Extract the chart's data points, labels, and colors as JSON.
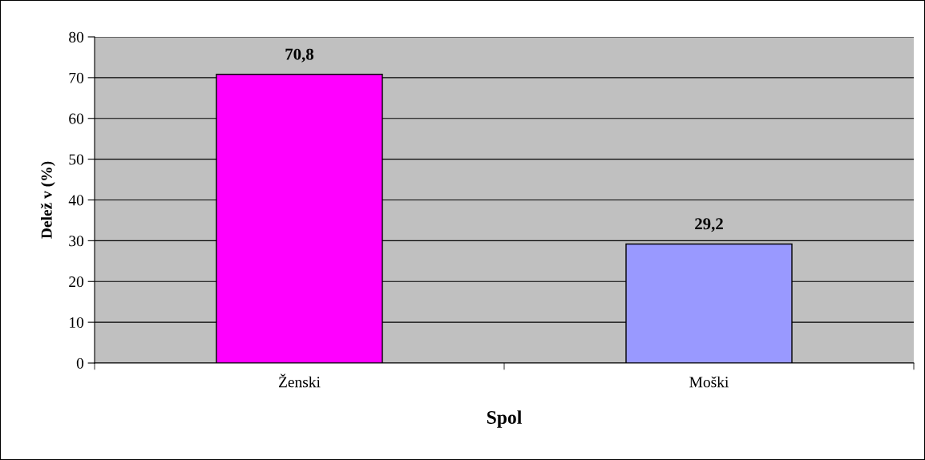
{
  "chart_data": {
    "type": "bar",
    "xlabel": "Spol",
    "ylabel": "Delež v (%)",
    "categories": [
      "Ženski",
      "Moški"
    ],
    "values": [
      70.8,
      29.2
    ],
    "colors": [
      "#ff00ff",
      "#9999ff"
    ],
    "value_labels": [
      "70,8",
      "29,2"
    ],
    "ylim": [
      0,
      80
    ],
    "yticks": [
      0,
      10,
      20,
      30,
      40,
      50,
      60,
      70,
      80
    ],
    "grid": "y"
  }
}
